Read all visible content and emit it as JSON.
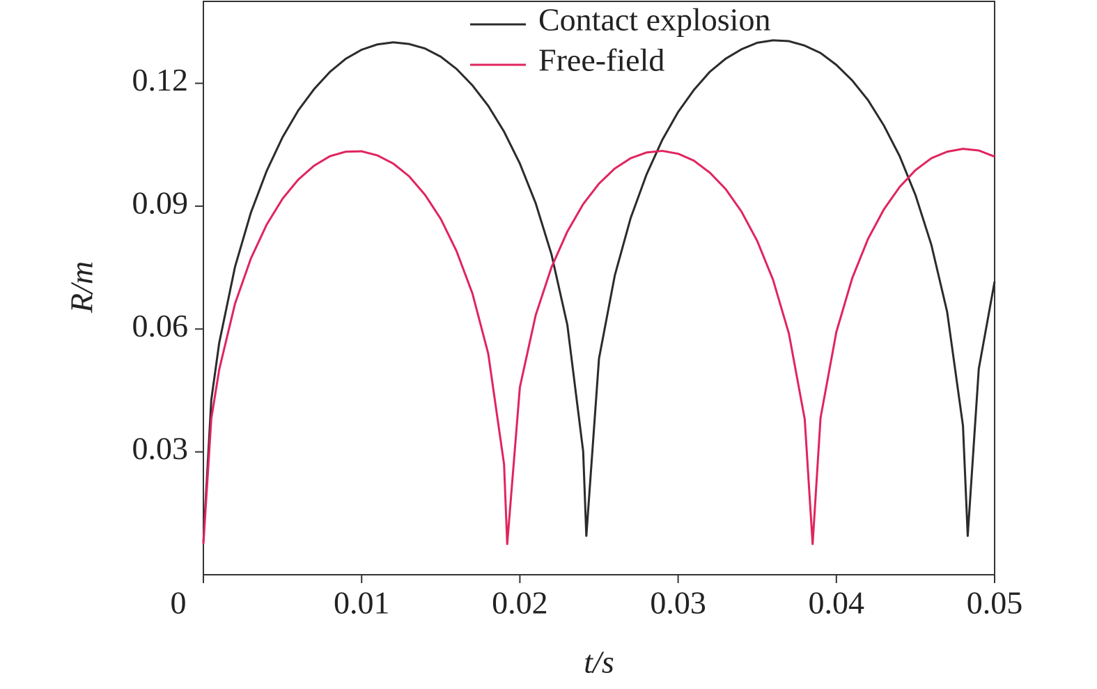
{
  "chart_data": {
    "type": "line",
    "x_label": "t/s",
    "y_label": "R/m",
    "xlim": [
      0,
      0.05
    ],
    "ylim": [
      0,
      0.14
    ],
    "xticks": [
      0,
      0.01,
      0.02,
      0.03,
      0.04,
      0.05
    ],
    "yticks": [
      0.03,
      0.06,
      0.09,
      0.12
    ],
    "grid": false,
    "legend": "upper center",
    "series": [
      {
        "name": "Contact explosion",
        "color": "#2b2b2b",
        "x": [
          0,
          0.0005,
          0.001,
          0.002,
          0.003,
          0.004,
          0.005,
          0.006,
          0.007,
          0.008,
          0.009,
          0.01,
          0.011,
          0.012,
          0.013,
          0.014,
          0.015,
          0.016,
          0.017,
          0.018,
          0.019,
          0.02,
          0.021,
          0.022,
          0.023,
          0.024,
          0.0242,
          0.025,
          0.026,
          0.027,
          0.028,
          0.029,
          0.03,
          0.031,
          0.032,
          0.033,
          0.034,
          0.035,
          0.036,
          0.037,
          0.038,
          0.039,
          0.04,
          0.041,
          0.042,
          0.043,
          0.044,
          0.045,
          0.046,
          0.047,
          0.048,
          0.0483,
          0.049,
          0.05
        ],
        "values": [
          0.008,
          0.0427,
          0.0566,
          0.0752,
          0.0884,
          0.0986,
          0.1068,
          0.1134,
          0.1186,
          0.1228,
          0.126,
          0.1282,
          0.1295,
          0.13,
          0.1296,
          0.1285,
          0.1265,
          0.1235,
          0.1195,
          0.1145,
          0.1082,
          0.1004,
          0.0907,
          0.0782,
          0.061,
          0.0301,
          0.0095,
          0.0528,
          0.0731,
          0.0871,
          0.0977,
          0.1062,
          0.113,
          0.1184,
          0.1228,
          0.126,
          0.1283,
          0.1299,
          0.1305,
          0.1303,
          0.1292,
          0.1274,
          0.1245,
          0.1207,
          0.1159,
          0.1097,
          0.1022,
          0.0927,
          0.0806,
          0.0642,
          0.0364,
          0.0095,
          0.0503,
          0.0716
        ]
      },
      {
        "name": "Free-field",
        "color": "#e0245e",
        "x": [
          0,
          0.0005,
          0.001,
          0.002,
          0.003,
          0.004,
          0.005,
          0.006,
          0.007,
          0.008,
          0.009,
          0.01,
          0.011,
          0.012,
          0.013,
          0.014,
          0.015,
          0.016,
          0.017,
          0.018,
          0.019,
          0.0192,
          0.02,
          0.021,
          0.022,
          0.023,
          0.024,
          0.025,
          0.026,
          0.027,
          0.028,
          0.029,
          0.03,
          0.031,
          0.032,
          0.033,
          0.034,
          0.035,
          0.036,
          0.037,
          0.038,
          0.0385,
          0.039,
          0.04,
          0.041,
          0.042,
          0.043,
          0.044,
          0.045,
          0.046,
          0.047,
          0.048,
          0.049,
          0.05
        ],
        "values": [
          0.0075,
          0.0381,
          0.0501,
          0.0662,
          0.0772,
          0.0855,
          0.0918,
          0.0965,
          0.0999,
          0.1022,
          0.1033,
          0.1034,
          0.1024,
          0.1004,
          0.0973,
          0.0928,
          0.0869,
          0.079,
          0.0687,
          0.054,
          0.027,
          0.0075,
          0.0458,
          0.0634,
          0.0751,
          0.0838,
          0.0905,
          0.0955,
          0.0992,
          0.1017,
          0.1031,
          0.1035,
          0.1028,
          0.1011,
          0.0982,
          0.0942,
          0.0887,
          0.0815,
          0.072,
          0.0589,
          0.038,
          0.0075,
          0.0383,
          0.0593,
          0.0724,
          0.082,
          0.0892,
          0.0947,
          0.0988,
          0.1017,
          0.1033,
          0.104,
          0.1036,
          0.1021
        ]
      }
    ]
  }
}
